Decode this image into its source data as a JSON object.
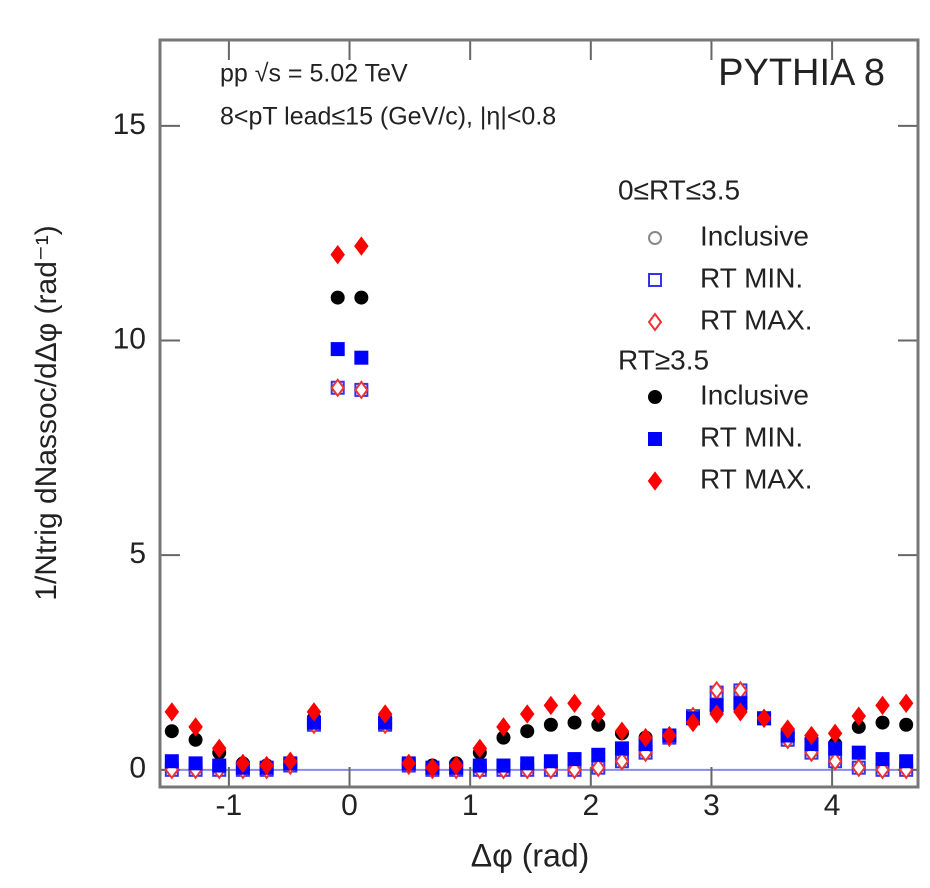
{
  "chart_data": {
    "type": "scatter",
    "annotations": [
      "pp √s = 5.02 TeV",
      "8<pT lead≤15 (GeV/c), |η|<0.8",
      "PYTHIA 8"
    ],
    "x_label": "Δφ (rad)",
    "y_label": "1/Ntrig dNassoc/dΔφ (rad⁻¹)",
    "xlim": [
      -1.571,
      4.712
    ],
    "ylim": [
      -0.4,
      17
    ],
    "xticks": [
      -1,
      0,
      1,
      2,
      3,
      4
    ],
    "yticks": [
      0,
      5,
      10,
      15
    ],
    "reference_line": 0,
    "legend_titles": [
      "0≤RT≤3.5",
      "RT≥3.5"
    ],
    "x": [
      -1.473,
      -1.276,
      -1.08,
      -0.884,
      -0.687,
      -0.491,
      -0.295,
      -0.098,
      0.098,
      0.295,
      0.491,
      0.687,
      0.884,
      1.08,
      1.276,
      1.473,
      1.669,
      1.865,
      2.062,
      2.258,
      2.454,
      2.651,
      2.847,
      3.043,
      3.24,
      3.436,
      3.632,
      3.829,
      4.025,
      4.221,
      4.418,
      4.614
    ],
    "series": [
      {
        "name": "Inclusive",
        "color": "#888888",
        "marker": "circle",
        "filled": false,
        "values": [
          0,
          0,
          0,
          0,
          0,
          0.1,
          1.05,
          8.9,
          8.85,
          1.05,
          0.1,
          0,
          0,
          0,
          0,
          0,
          0,
          0,
          0.05,
          0.2,
          0.4,
          0.75,
          1.25,
          1.8,
          1.85,
          1.2,
          0.7,
          0.4,
          0.2,
          0.05,
          0,
          0
        ]
      },
      {
        "name": "RT MIN.",
        "color": "#3333ee",
        "marker": "square",
        "filled": false,
        "values": [
          0,
          0,
          0,
          0,
          0,
          0.1,
          1.05,
          8.9,
          8.85,
          1.05,
          0.1,
          0,
          0,
          0,
          0,
          0,
          0,
          0,
          0.05,
          0.2,
          0.4,
          0.75,
          1.25,
          1.8,
          1.85,
          1.2,
          0.7,
          0.4,
          0.2,
          0.05,
          0,
          0
        ]
      },
      {
        "name": "RT MAX.",
        "color": "#ee3333",
        "marker": "diamond",
        "filled": false,
        "values": [
          0,
          0,
          0,
          0,
          0,
          0.1,
          1.05,
          8.9,
          8.85,
          1.05,
          0.1,
          0,
          0,
          0,
          0,
          0,
          0,
          0,
          0.05,
          0.2,
          0.4,
          0.75,
          1.25,
          1.85,
          1.85,
          1.2,
          0.7,
          0.4,
          0.2,
          0.05,
          0,
          0
        ]
      },
      {
        "name": "Inclusive",
        "color": "#000000",
        "marker": "circle",
        "filled": true,
        "values": [
          0.9,
          0.7,
          0.4,
          0.15,
          0.1,
          0.15,
          1.2,
          11.0,
          11.0,
          1.2,
          0.15,
          0.1,
          0.15,
          0.4,
          0.75,
          0.9,
          1.05,
          1.1,
          1.05,
          0.85,
          0.75,
          0.8,
          1.15,
          1.4,
          1.45,
          1.2,
          0.85,
          0.7,
          0.6,
          1.0,
          1.1,
          1.05
        ]
      },
      {
        "name": "RT MIN.",
        "color": "#0000ff",
        "marker": "square",
        "filled": true,
        "values": [
          0.2,
          0.15,
          0.1,
          0.05,
          0.05,
          0.15,
          1.1,
          9.8,
          9.6,
          1.1,
          0.15,
          0.05,
          0.05,
          0.1,
          0.1,
          0.15,
          0.2,
          0.25,
          0.35,
          0.5,
          0.6,
          0.8,
          1.2,
          1.5,
          1.55,
          1.2,
          0.8,
          0.6,
          0.5,
          0.4,
          0.25,
          0.2
        ]
      },
      {
        "name": "RT MAX.",
        "color": "#ff0000",
        "marker": "diamond",
        "filled": true,
        "values": [
          1.35,
          1.0,
          0.5,
          0.15,
          0.1,
          0.2,
          1.35,
          12.0,
          12.2,
          1.3,
          0.15,
          0.05,
          0.1,
          0.5,
          1.0,
          1.3,
          1.5,
          1.55,
          1.3,
          0.9,
          0.75,
          0.8,
          1.1,
          1.3,
          1.35,
          1.2,
          0.95,
          0.8,
          0.85,
          1.25,
          1.5,
          1.55
        ]
      }
    ]
  }
}
